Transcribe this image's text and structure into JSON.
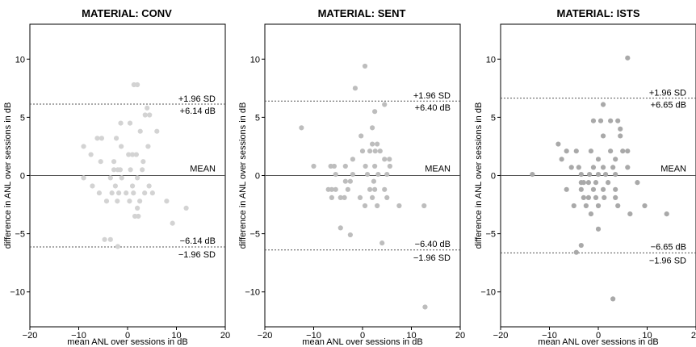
{
  "colors": {
    "conv_points": "#d3d3d3",
    "sent_points": "#bdbdbd",
    "ists_points": "#a9a9a9",
    "axis": "#000000",
    "ref_line": "#555555"
  },
  "chart_data": [
    {
      "type": "scatter",
      "title": "MATERIAL: CONV",
      "xlabel": "mean ANL over sessions in dB",
      "ylabel": "difference in ANL over sessions in dB",
      "xlim": [
        -20,
        20
      ],
      "ylim": [
        -13,
        13
      ],
      "xticks": [
        "−20",
        "−10",
        "0",
        "10",
        "20"
      ],
      "yticks": [
        "−10",
        "−5",
        "0",
        "5",
        "10"
      ],
      "grid": false,
      "mean_line": {
        "value": 0,
        "label": "MEAN"
      },
      "upper_limit": {
        "value": 6.14,
        "label_sd": "+1.96 SD",
        "label_db": "+6.14 dB"
      },
      "lower_limit": {
        "value": -6.14,
        "label_sd": "−1.96 SD",
        "label_db": "−6.14 dB"
      },
      "points": [
        [
          1.3,
          7.8
        ],
        [
          2.0,
          7.8
        ],
        [
          4.0,
          5.8
        ],
        [
          3.6,
          5.2
        ],
        [
          4.5,
          5.2
        ],
        [
          -1.4,
          4.5
        ],
        [
          0.5,
          4.5
        ],
        [
          -6.2,
          3.2
        ],
        [
          -5.3,
          3.2
        ],
        [
          -2.3,
          3.2
        ],
        [
          2.6,
          3.8
        ],
        [
          6.0,
          3.8
        ],
        [
          -9.0,
          2.5
        ],
        [
          -1.3,
          2.5
        ],
        [
          4.2,
          2.5
        ],
        [
          -7.5,
          1.8
        ],
        [
          0.2,
          1.8
        ],
        [
          1.0,
          1.8
        ],
        [
          1.8,
          1.8
        ],
        [
          -5.5,
          1.2
        ],
        [
          -2.8,
          1.2
        ],
        [
          3.2,
          1.2
        ],
        [
          -2.8,
          0.5
        ],
        [
          -2.0,
          0.5
        ],
        [
          -1.5,
          0.5
        ],
        [
          0.6,
          0.5
        ],
        [
          3.0,
          0.5
        ],
        [
          -9.0,
          -0.2
        ],
        [
          -3.5,
          -0.2
        ],
        [
          -1.2,
          -0.2
        ],
        [
          2.0,
          -0.2
        ],
        [
          -7.2,
          -0.9
        ],
        [
          -2.5,
          -0.9
        ],
        [
          1.0,
          -0.9
        ],
        [
          4.4,
          -0.9
        ],
        [
          -5.8,
          -1.5
        ],
        [
          -3.2,
          -1.5
        ],
        [
          -1.8,
          -1.5
        ],
        [
          -0.3,
          -1.5
        ],
        [
          1.2,
          -1.5
        ],
        [
          3.5,
          -1.5
        ],
        [
          5.1,
          -1.5
        ],
        [
          -4.3,
          -2.2
        ],
        [
          -2.1,
          -2.2
        ],
        [
          0.4,
          -2.2
        ],
        [
          2.5,
          -2.2
        ],
        [
          8.0,
          -2.2
        ],
        [
          2.0,
          -2.8
        ],
        [
          12.0,
          -2.8
        ],
        [
          1.5,
          -3.5
        ],
        [
          2.2,
          -3.5
        ],
        [
          9.2,
          -4.1
        ],
        [
          -4.7,
          -5.5
        ],
        [
          -3.5,
          -5.5
        ],
        [
          -2.0,
          -6.1
        ]
      ]
    },
    {
      "type": "scatter",
      "title": "MATERIAL: SENT",
      "xlabel": "mean ANL over sessions in dB",
      "ylabel": "difference in ANL over sessions in dB",
      "xlim": [
        -20,
        20
      ],
      "ylim": [
        -13,
        13
      ],
      "xticks": [
        "−20",
        "−10",
        "0",
        "10",
        "20"
      ],
      "yticks": [
        "−10",
        "−5",
        "0",
        "5",
        "10"
      ],
      "grid": false,
      "mean_line": {
        "value": 0,
        "label": "MEAN"
      },
      "upper_limit": {
        "value": 6.4,
        "label_sd": "+1.96 SD",
        "label_db": "+6.40 dB"
      },
      "lower_limit": {
        "value": -6.4,
        "label_sd": "−1.96 SD",
        "label_db": "−6.40 dB"
      },
      "points": [
        [
          0.5,
          9.4
        ],
        [
          -1.5,
          7.5
        ],
        [
          4.5,
          6.1
        ],
        [
          2.5,
          5.5
        ],
        [
          -12.5,
          4.1
        ],
        [
          2.0,
          4.1
        ],
        [
          -0.3,
          3.4
        ],
        [
          2.0,
          2.7
        ],
        [
          3.0,
          2.7
        ],
        [
          0.0,
          2.1
        ],
        [
          1.5,
          2.1
        ],
        [
          2.6,
          2.1
        ],
        [
          3.6,
          2.1
        ],
        [
          4.5,
          1.4
        ],
        [
          5.5,
          1.4
        ],
        [
          -2.0,
          1.4
        ],
        [
          -10.0,
          0.8
        ],
        [
          -6.5,
          0.8
        ],
        [
          -5.8,
          0.8
        ],
        [
          -3.5,
          0.8
        ],
        [
          0.6,
          0.8
        ],
        [
          2.5,
          0.8
        ],
        [
          5.6,
          0.8
        ],
        [
          5.0,
          0.1
        ],
        [
          -5.5,
          0.1
        ],
        [
          -2.0,
          0.1
        ],
        [
          1.0,
          0.1
        ],
        [
          3.2,
          0.1
        ],
        [
          -3.5,
          -0.5
        ],
        [
          -2.5,
          -0.5
        ],
        [
          2.3,
          -0.5
        ],
        [
          -7.0,
          -1.2
        ],
        [
          -6.3,
          -1.2
        ],
        [
          -5.5,
          -1.2
        ],
        [
          -3.0,
          -1.2
        ],
        [
          1.5,
          -1.2
        ],
        [
          2.5,
          -1.2
        ],
        [
          4.5,
          -1.2
        ],
        [
          -6.3,
          -1.9
        ],
        [
          -4.5,
          -1.9
        ],
        [
          -3.7,
          -1.9
        ],
        [
          -0.5,
          -1.9
        ],
        [
          2.0,
          -1.9
        ],
        [
          5.0,
          -1.9
        ],
        [
          0.5,
          -2.6
        ],
        [
          3.0,
          -2.6
        ],
        [
          7.5,
          -2.6
        ],
        [
          12.6,
          -2.6
        ],
        [
          -4.5,
          -4.5
        ],
        [
          -2.5,
          -5.1
        ],
        [
          4.0,
          -5.8
        ],
        [
          12.8,
          -11.3
        ]
      ]
    },
    {
      "type": "scatter",
      "title": "MATERIAL: ISTS",
      "xlabel": "mean ANL over sessions in dB",
      "ylabel": "difference in ANL over sessions in dB",
      "xlim": [
        -20,
        20
      ],
      "ylim": [
        -13,
        13
      ],
      "xticks": [
        "−20",
        "−10",
        "0",
        "10",
        "20"
      ],
      "yticks": [
        "−10",
        "−5",
        "0",
        "5",
        "10"
      ],
      "grid": false,
      "mean_line": {
        "value": 0,
        "label": "MEAN"
      },
      "upper_limit": {
        "value": 6.65,
        "label_sd": "+1.96 SD",
        "label_db": "+6.65 dB"
      },
      "lower_limit": {
        "value": -6.65,
        "label_sd": "−1.96 SD",
        "label_db": "−6.65 dB"
      },
      "points": [
        [
          6.0,
          10.1
        ],
        [
          1.0,
          6.1
        ],
        [
          2.5,
          4.7
        ],
        [
          4.0,
          4.7
        ],
        [
          -1.0,
          4.7
        ],
        [
          0.5,
          4.7
        ],
        [
          4.5,
          4.0
        ],
        [
          1.0,
          3.4
        ],
        [
          4.5,
          3.4
        ],
        [
          -8.2,
          2.7
        ],
        [
          -6.5,
          2.1
        ],
        [
          -4.5,
          2.1
        ],
        [
          -1.5,
          2.1
        ],
        [
          2.5,
          2.1
        ],
        [
          5.0,
          2.1
        ],
        [
          6.0,
          2.1
        ],
        [
          -7.5,
          1.4
        ],
        [
          0.0,
          1.4
        ],
        [
          3.5,
          1.4
        ],
        [
          -5.5,
          0.7
        ],
        [
          -4.0,
          0.7
        ],
        [
          -1.0,
          0.7
        ],
        [
          1.0,
          0.7
        ],
        [
          3.0,
          0.7
        ],
        [
          6.0,
          0.7
        ],
        [
          -13.5,
          0.1
        ],
        [
          -3.5,
          0.1
        ],
        [
          -1.8,
          0.1
        ],
        [
          0.0,
          0.1
        ],
        [
          1.5,
          0.1
        ],
        [
          3.5,
          0.1
        ],
        [
          -3.5,
          -0.6
        ],
        [
          -3.0,
          -0.6
        ],
        [
          -2.0,
          -0.6
        ],
        [
          -0.5,
          -0.6
        ],
        [
          2.0,
          -0.6
        ],
        [
          8.0,
          -0.6
        ],
        [
          -6.5,
          -1.2
        ],
        [
          -3.5,
          -1.2
        ],
        [
          -1.0,
          -1.2
        ],
        [
          1.0,
          -1.2
        ],
        [
          3.5,
          -1.2
        ],
        [
          -3.0,
          -1.9
        ],
        [
          -2.0,
          -1.9
        ],
        [
          -0.5,
          -1.9
        ],
        [
          1.2,
          -1.9
        ],
        [
          3.5,
          -1.9
        ],
        [
          -5.0,
          -2.6
        ],
        [
          -2.5,
          -2.6
        ],
        [
          0.0,
          -2.6
        ],
        [
          4.0,
          -2.6
        ],
        [
          9.5,
          -2.6
        ],
        [
          -1.5,
          -3.3
        ],
        [
          6.5,
          -3.3
        ],
        [
          14.0,
          -3.3
        ],
        [
          0.0,
          -4.6
        ],
        [
          -3.5,
          -6.0
        ],
        [
          -4.5,
          -6.6
        ],
        [
          3.0,
          -10.6
        ]
      ]
    }
  ]
}
